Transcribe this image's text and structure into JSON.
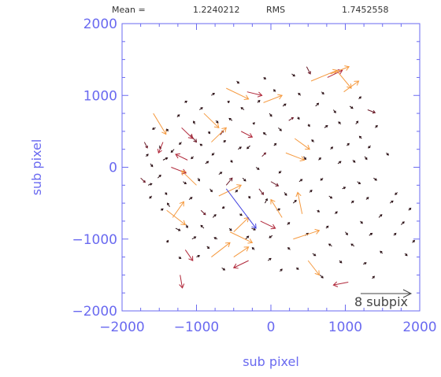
{
  "header": {
    "mean_label": "Mean =",
    "mean_value": "1.2240212",
    "rms_label": "RMS",
    "rms_value": "1.7452558"
  },
  "chart_data": {
    "type": "vector-field",
    "xlabel": "sub pixel",
    "ylabel": "sub pixel",
    "xlim": [
      -2000,
      2000
    ],
    "ylim": [
      -2000,
      2000
    ],
    "x_ticks": [
      -2000,
      -1000,
      0,
      1000,
      2000
    ],
    "y_ticks": [
      -2000,
      -1000,
      0,
      1000,
      2000
    ],
    "x_tick_labels": [
      "−2000",
      "−1000",
      "0",
      "1000",
      "2000"
    ],
    "y_tick_labels": [
      "−2000",
      "−1000",
      "0",
      "1000",
      "2000"
    ],
    "scale_label": "8 subpix",
    "colors": {
      "axis": "#6a6af0",
      "small": "#2b1015",
      "medium": "#b0283a",
      "large": "#f59a40",
      "max": "#4040e0"
    },
    "vectors": [
      [
        -1750,
        -150,
        60,
        -60
      ],
      [
        -1700,
        350,
        40,
        -80
      ],
      [
        -1680,
        150,
        30,
        30
      ],
      [
        -1650,
        -250,
        50,
        20
      ],
      [
        -1620,
        50,
        30,
        -40
      ],
      [
        -1600,
        -400,
        -30,
        -30
      ],
      [
        -1580,
        750,
        170,
        -290
      ],
      [
        -1550,
        550,
        -40,
        -20
      ],
      [
        -1520,
        -150,
        40,
        40
      ],
      [
        -1500,
        300,
        20,
        -40
      ],
      [
        -1480,
        -600,
        30,
        20
      ],
      [
        -1450,
        100,
        60,
        30
      ],
      [
        -1420,
        -350,
        20,
        -30
      ],
      [
        -1400,
        -1050,
        20,
        30
      ],
      [
        -1380,
        500,
        -20,
        30
      ],
      [
        -1360,
        -550,
        -30,
        50
      ],
      [
        -1340,
        0,
        200,
        -80
      ],
      [
        -1320,
        -700,
        150,
        220
      ],
      [
        -1300,
        250,
        -40,
        -40
      ],
      [
        -1280,
        -850,
        60,
        -30
      ],
      [
        -1260,
        700,
        30,
        30
      ],
      [
        -1240,
        -1250,
        30,
        -20
      ],
      [
        -1220,
        -1500,
        30,
        -180
      ],
      [
        -1200,
        350,
        -30,
        -30
      ],
      [
        -1180,
        -200,
        40,
        -30
      ],
      [
        -1160,
        900,
        30,
        20
      ],
      [
        -1140,
        -800,
        20,
        -40
      ],
      [
        -1120,
        100,
        -160,
        80
      ],
      [
        -1100,
        -450,
        40,
        30
      ],
      [
        -1080,
        450,
        80,
        -100
      ],
      [
        -1060,
        -1000,
        50,
        30
      ],
      [
        -1040,
        150,
        -30,
        -30
      ],
      [
        -1020,
        600,
        -20,
        40
      ],
      [
        -1000,
        -1250,
        40,
        20
      ],
      [
        -980,
        -150,
        20,
        -40
      ],
      [
        -960,
        800,
        40,
        30
      ],
      [
        -940,
        -600,
        60,
        -60
      ],
      [
        -920,
        300,
        -30,
        20
      ],
      [
        -900,
        -850,
        -40,
        40
      ],
      [
        -880,
        50,
        40,
        30
      ],
      [
        -860,
        -1100,
        30,
        -30
      ],
      [
        -840,
        500,
        20,
        -30
      ],
      [
        -820,
        -300,
        30,
        -40
      ],
      [
        -800,
        1000,
        40,
        30
      ],
      [
        -780,
        -700,
        40,
        40
      ],
      [
        -760,
        200,
        -30,
        -30
      ],
      [
        -740,
        650,
        30,
        -30
      ],
      [
        -720,
        -1000,
        -40,
        20
      ],
      [
        -700,
        -100,
        40,
        30
      ],
      [
        -680,
        450,
        40,
        60
      ],
      [
        -660,
        -1400,
        40,
        -30
      ],
      [
        -640,
        350,
        30,
        20
      ],
      [
        -620,
        -550,
        -30,
        -20
      ],
      [
        -600,
        -250,
        80,
        100
      ],
      [
        -580,
        900,
        20,
        20
      ],
      [
        -560,
        -850,
        30,
        -30
      ],
      [
        -540,
        100,
        20,
        -30
      ],
      [
        -520,
        650,
        -40,
        30
      ],
      [
        -500,
        -1250,
        200,
        140
      ],
      [
        -480,
        -350,
        30,
        30
      ],
      [
        -460,
        1200,
        30,
        -30
      ],
      [
        -440,
        250,
        40,
        30
      ],
      [
        -420,
        -650,
        30,
        -20
      ],
      [
        -400,
        500,
        150,
        -80
      ],
      [
        -380,
        -150,
        40,
        -40
      ],
      [
        -360,
        800,
        -40,
        30
      ],
      [
        -340,
        -1000,
        40,
        40
      ],
      [
        -320,
        1050,
        200,
        -50
      ],
      [
        -300,
        -400,
        20,
        -30
      ],
      [
        -280,
        300,
        -40,
        -40
      ],
      [
        -260,
        -850,
        50,
        -20
      ],
      [
        -240,
        600,
        20,
        20
      ],
      [
        -220,
        -1150,
        -30,
        30
      ],
      [
        -200,
        0,
        40,
        -30
      ],
      [
        -180,
        900,
        30,
        30
      ],
      [
        -160,
        -300,
        60,
        -80
      ],
      [
        -140,
        -750,
        200,
        -100
      ],
      [
        -120,
        150,
        50,
        50
      ],
      [
        -100,
        1250,
        30,
        -20
      ],
      [
        -80,
        -500,
        30,
        60
      ],
      [
        -60,
        450,
        -40,
        30
      ],
      [
        -40,
        -1300,
        40,
        30
      ],
      [
        -20,
        750,
        30,
        -40
      ],
      [
        0,
        -200,
        100,
        -60
      ],
      [
        20,
        -950,
        -40,
        -30
      ],
      [
        40,
        300,
        30,
        30
      ],
      [
        60,
        1050,
        -20,
        30
      ],
      [
        80,
        -600,
        40,
        20
      ],
      [
        100,
        550,
        40,
        -40
      ],
      [
        120,
        -1450,
        30,
        30
      ],
      [
        140,
        -50,
        -30,
        -30
      ],
      [
        160,
        850,
        40,
        30
      ],
      [
        180,
        -350,
        30,
        -40
      ],
      [
        200,
        200,
        250,
        -100
      ],
      [
        220,
        -800,
        30,
        30
      ],
      [
        240,
        650,
        60,
        40
      ],
      [
        260,
        -1150,
        -30,
        30
      ],
      [
        280,
        1300,
        40,
        -30
      ],
      [
        300,
        -500,
        40,
        40
      ],
      [
        320,
        400,
        200,
        -150
      ],
      [
        340,
        -1400,
        30,
        -20
      ],
      [
        360,
        700,
        20,
        -30
      ],
      [
        380,
        -200,
        40,
        30
      ],
      [
        400,
        1000,
        -30,
        30
      ],
      [
        420,
        -650,
        -60,
        300
      ],
      [
        440,
        150,
        30,
        -40
      ],
      [
        460,
        -950,
        40,
        30
      ],
      [
        480,
        1400,
        50,
        -100
      ],
      [
        500,
        600,
        20,
        -30
      ],
      [
        520,
        -350,
        30,
        30
      ],
      [
        540,
        1200,
        350,
        150
      ],
      [
        560,
        -1200,
        40,
        -30
      ],
      [
        580,
        350,
        -30,
        30
      ],
      [
        600,
        850,
        40,
        40
      ],
      [
        620,
        -600,
        30,
        -20
      ],
      [
        640,
        100,
        30,
        30
      ],
      [
        660,
        -1500,
        40,
        -40
      ],
      [
        680,
        1050,
        30,
        -30
      ],
      [
        700,
        -150,
        -30,
        -30
      ],
      [
        720,
        550,
        40,
        30
      ],
      [
        740,
        -850,
        30,
        30
      ],
      [
        760,
        1250,
        200,
        100
      ],
      [
        780,
        -400,
        40,
        -30
      ],
      [
        800,
        250,
        30,
        30
      ],
      [
        820,
        -1100,
        -40,
        30
      ],
      [
        840,
        800,
        30,
        -40
      ],
      [
        860,
        -650,
        30,
        30
      ],
      [
        880,
        1350,
        200,
        -250
      ],
      [
        900,
        50,
        40,
        30
      ],
      [
        920,
        -1300,
        30,
        -30
      ],
      [
        940,
        600,
        -30,
        30
      ],
      [
        960,
        -300,
        40,
        20
      ],
      [
        980,
        1050,
        200,
        150
      ],
      [
        1000,
        -900,
        30,
        -40
      ],
      [
        1020,
        300,
        30,
        30
      ],
      [
        1040,
        -1600,
        -200,
        -40
      ],
      [
        1060,
        850,
        40,
        -30
      ],
      [
        1080,
        -500,
        30,
        30
      ],
      [
        1100,
        100,
        30,
        -30
      ],
      [
        1120,
        -1100,
        -40,
        30
      ],
      [
        1140,
        600,
        30,
        40
      ],
      [
        1160,
        -200,
        40,
        -30
      ],
      [
        1180,
        950,
        30,
        30
      ],
      [
        1200,
        -750,
        30,
        -30
      ],
      [
        1220,
        400,
        -30,
        30
      ],
      [
        1240,
        -1350,
        40,
        20
      ],
      [
        1260,
        150,
        30,
        -40
      ],
      [
        1280,
        -450,
        30,
        30
      ],
      [
        1300,
        800,
        100,
        -40
      ],
      [
        1320,
        -950,
        40,
        30
      ],
      [
        1340,
        300,
        -30,
        -30
      ],
      [
        1360,
        -1550,
        30,
        30
      ],
      [
        1380,
        -150,
        40,
        -30
      ],
      [
        1400,
        550,
        30,
        30
      ],
      [
        1450,
        -700,
        40,
        40
      ],
      [
        1500,
        -1200,
        -30,
        30
      ],
      [
        1550,
        200,
        30,
        -30
      ],
      [
        1600,
        -500,
        40,
        30
      ],
      [
        1650,
        -950,
        30,
        30
      ],
      [
        1700,
        -350,
        -30,
        -30
      ],
      [
        1750,
        -800,
        40,
        40
      ],
      [
        1800,
        -1200,
        30,
        -30
      ],
      [
        1850,
        -600,
        30,
        30
      ],
      [
        1900,
        -1050,
        30,
        30
      ],
      [
        -500,
        -900,
        200,
        200
      ],
      [
        -300,
        -1300,
        -200,
        -100
      ],
      [
        -1150,
        -1150,
        100,
        -150
      ],
      [
        -700,
        -400,
        300,
        150
      ],
      [
        -900,
        750,
        200,
        -200
      ],
      [
        -1450,
        350,
        -60,
        -150
      ],
      [
        300,
        -1000,
        350,
        120
      ],
      [
        500,
        -1300,
        150,
        -200
      ],
      [
        150,
        -700,
        -150,
        250
      ],
      [
        -1000,
        -250,
        -200,
        200
      ],
      [
        -1200,
        550,
        150,
        -150
      ],
      [
        -1400,
        -600,
        250,
        -200
      ],
      [
        -550,
        -900,
        300,
        -150
      ],
      [
        -800,
        350,
        200,
        200
      ],
      [
        -600,
        1100,
        300,
        -150
      ],
      [
        -800,
        -1250,
        250,
        200
      ],
      [
        -100,
        900,
        250,
        100
      ],
      [
        800,
        1300,
        250,
        100
      ]
    ],
    "max_vector": [
      -600,
      -300,
      400,
      -550
    ]
  }
}
